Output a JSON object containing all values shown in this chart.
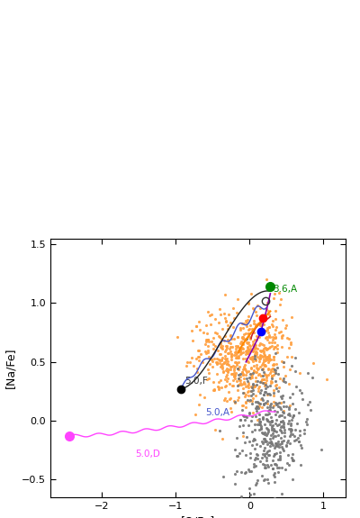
{
  "xlabel": "[O/Fe]",
  "ylabel": "[Na/Fe]",
  "xlim": [
    -2.7,
    1.3
  ],
  "ylim": [
    -0.65,
    1.55
  ],
  "xticks": [
    -2,
    -1,
    0,
    1
  ],
  "yticks": [
    -0.5,
    0,
    0.5,
    1,
    1.5
  ],
  "bg_color": "white",
  "scatter_orange_color": "#FFA040",
  "scatter_gray_color": "#777777",
  "label_50F": "5.0,F",
  "label_50A": "5.0,A",
  "label_50D": "5.0,D",
  "label_36A": "3.6,A",
  "figsize": [
    4.0,
    5.75
  ],
  "dpi": 100
}
